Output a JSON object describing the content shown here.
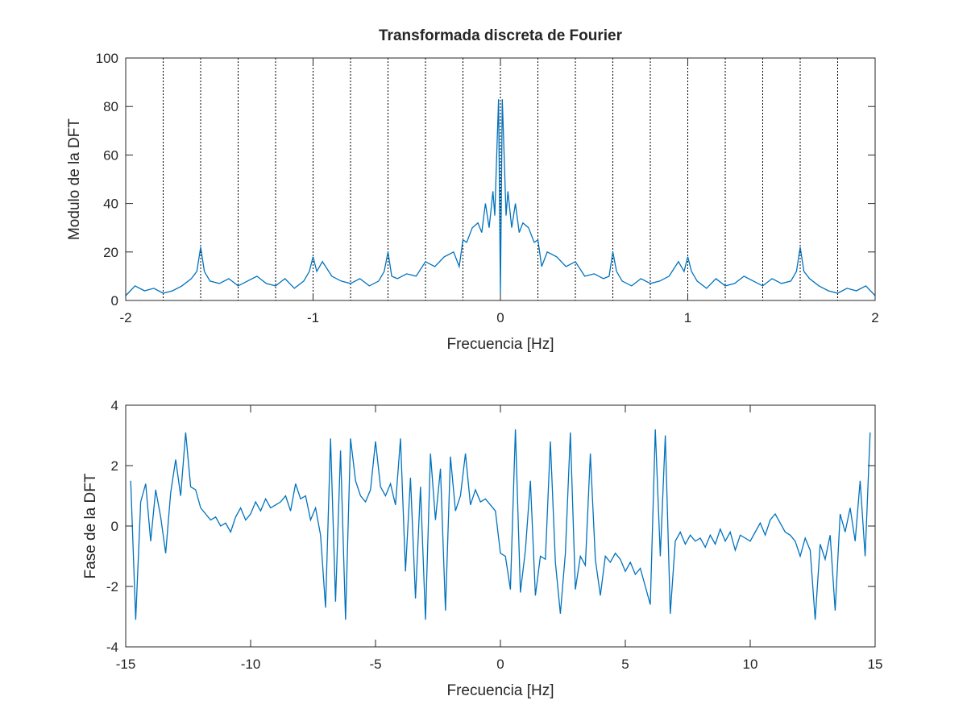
{
  "chart_data": [
    {
      "type": "line",
      "title": "Transformada discreta de Fourier",
      "xlabel": "Frecuencia [Hz]",
      "ylabel": "Modulo de la DFT",
      "xlim": [
        -2,
        2
      ],
      "ylim": [
        0,
        100
      ],
      "xticks": [
        "-2",
        "-1",
        "0",
        "1",
        "2"
      ],
      "yticks": [
        "0",
        "20",
        "40",
        "60",
        "80",
        "100"
      ],
      "vlines_dotted": [
        -1.8,
        -1.6,
        -1.4,
        -1.2,
        -1.0,
        -0.8,
        -0.6,
        -0.4,
        -0.2,
        0,
        0.2,
        0.4,
        0.6,
        0.8,
        1.0,
        1.2,
        1.4,
        1.6,
        1.8
      ],
      "line_color": "#0072bd",
      "series": [
        {
          "x": [
            -2,
            -1.95,
            -1.9,
            -1.85,
            -1.8,
            -1.75,
            -1.7,
            -1.65,
            -1.62,
            -1.6,
            -1.58,
            -1.55,
            -1.5,
            -1.45,
            -1.4,
            -1.35,
            -1.3,
            -1.25,
            -1.2,
            -1.15,
            -1.1,
            -1.05,
            -1.02,
            -1.0,
            -0.98,
            -0.95,
            -0.9,
            -0.85,
            -0.8,
            -0.75,
            -0.7,
            -0.65,
            -0.62,
            -0.6,
            -0.58,
            -0.55,
            -0.5,
            -0.45,
            -0.4,
            -0.35,
            -0.3,
            -0.25,
            -0.22,
            -0.2,
            -0.18,
            -0.15,
            -0.12,
            -0.1,
            -0.08,
            -0.06,
            -0.04,
            -0.03,
            -0.02,
            -0.01,
            0,
            0.01,
            0.02,
            0.03,
            0.04,
            0.06,
            0.08,
            0.1,
            0.12,
            0.15,
            0.18,
            0.2,
            0.22,
            0.25,
            0.3,
            0.35,
            0.4,
            0.45,
            0.5,
            0.55,
            0.58,
            0.6,
            0.62,
            0.65,
            0.7,
            0.75,
            0.8,
            0.85,
            0.9,
            0.95,
            0.98,
            1.0,
            1.02,
            1.05,
            1.1,
            1.15,
            1.2,
            1.25,
            1.3,
            1.35,
            1.4,
            1.45,
            1.5,
            1.55,
            1.58,
            1.6,
            1.62,
            1.65,
            1.7,
            1.75,
            1.8,
            1.85,
            1.9,
            1.95,
            2.0
          ],
          "y": [
            2,
            6,
            4,
            5,
            3,
            4,
            6,
            9,
            12,
            22,
            12,
            8,
            7,
            9,
            6,
            8,
            10,
            7,
            6,
            9,
            5,
            8,
            12,
            18,
            12,
            16,
            10,
            8,
            7,
            9,
            6,
            8,
            12,
            20,
            10,
            9,
            11,
            10,
            16,
            14,
            18,
            20,
            14,
            25,
            24,
            30,
            32,
            28,
            40,
            30,
            45,
            35,
            60,
            83,
            3,
            83,
            60,
            35,
            45,
            30,
            40,
            28,
            32,
            30,
            24,
            25,
            14,
            20,
            18,
            14,
            16,
            10,
            11,
            9,
            10,
            20,
            12,
            8,
            6,
            9,
            7,
            8,
            10,
            16,
            12,
            18,
            12,
            8,
            5,
            9,
            6,
            7,
            10,
            8,
            6,
            9,
            7,
            8,
            12,
            22,
            12,
            9,
            6,
            4,
            3,
            5,
            4,
            6,
            2
          ]
        }
      ]
    },
    {
      "type": "line",
      "title": "",
      "xlabel": "Frecuencia [Hz]",
      "ylabel": "Fase de la DFT",
      "xlim": [
        -15,
        15
      ],
      "ylim": [
        -4,
        4
      ],
      "xticks": [
        "-15",
        "-10",
        "-5",
        "0",
        "5",
        "10",
        "15"
      ],
      "yticks": [
        "-4",
        "-2",
        "0",
        "2",
        "4"
      ],
      "line_color": "#0072bd",
      "series": [
        {
          "x": [
            -14.8,
            -14.6,
            -14.4,
            -14.2,
            -14.0,
            -13.8,
            -13.6,
            -13.4,
            -13.2,
            -13.0,
            -12.8,
            -12.6,
            -12.4,
            -12.2,
            -12.0,
            -11.8,
            -11.6,
            -11.4,
            -11.2,
            -11.0,
            -10.8,
            -10.6,
            -10.4,
            -10.2,
            -10.0,
            -9.8,
            -9.6,
            -9.4,
            -9.2,
            -9.0,
            -8.8,
            -8.6,
            -8.4,
            -8.2,
            -8.0,
            -7.8,
            -7.6,
            -7.4,
            -7.2,
            -7.0,
            -6.8,
            -6.6,
            -6.4,
            -6.2,
            -6.0,
            -5.8,
            -5.6,
            -5.4,
            -5.2,
            -5.0,
            -4.8,
            -4.6,
            -4.4,
            -4.2,
            -4.0,
            -3.8,
            -3.6,
            -3.4,
            -3.2,
            -3.0,
            -2.8,
            -2.6,
            -2.4,
            -2.2,
            -2.0,
            -1.8,
            -1.6,
            -1.4,
            -1.2,
            -1.0,
            -0.8,
            -0.6,
            -0.4,
            -0.2,
            0.0,
            0.2,
            0.4,
            0.6,
            0.8,
            1.0,
            1.2,
            1.4,
            1.6,
            1.8,
            2.0,
            2.2,
            2.4,
            2.6,
            2.8,
            3.0,
            3.2,
            3.4,
            3.6,
            3.8,
            4.0,
            4.2,
            4.4,
            4.6,
            4.8,
            5.0,
            5.2,
            5.4,
            5.6,
            5.8,
            6.0,
            6.2,
            6.4,
            6.6,
            6.8,
            7.0,
            7.2,
            7.4,
            7.6,
            7.8,
            8.0,
            8.2,
            8.4,
            8.6,
            8.8,
            9.0,
            9.2,
            9.4,
            9.6,
            9.8,
            10.0,
            10.2,
            10.4,
            10.6,
            10.8,
            11.0,
            11.2,
            11.4,
            11.6,
            11.8,
            12.0,
            12.2,
            12.4,
            12.6,
            12.8,
            13.0,
            13.2,
            13.4,
            13.6,
            13.8,
            14.0,
            14.2,
            14.4,
            14.6,
            14.8
          ],
          "y": [
            1.5,
            -3.1,
            0.8,
            1.4,
            -0.5,
            1.2,
            0.3,
            -0.9,
            1.1,
            2.2,
            1.0,
            3.1,
            1.3,
            1.2,
            0.6,
            0.4,
            0.2,
            0.3,
            0.0,
            0.1,
            -0.2,
            0.3,
            0.6,
            0.2,
            0.4,
            0.8,
            0.5,
            0.9,
            0.6,
            0.7,
            0.8,
            1.0,
            0.5,
            1.4,
            0.9,
            1.0,
            0.2,
            0.6,
            -0.3,
            -2.7,
            2.9,
            -2.5,
            2.5,
            -3.1,
            2.9,
            1.5,
            1.0,
            0.8,
            1.2,
            2.8,
            1.3,
            1.0,
            1.4,
            0.7,
            2.9,
            -1.5,
            1.6,
            -2.4,
            1.3,
            -3.1,
            2.4,
            0.2,
            1.9,
            -2.8,
            2.3,
            0.5,
            1.0,
            2.4,
            0.7,
            1.2,
            0.8,
            0.9,
            0.7,
            0.5,
            -0.9,
            -1.0,
            -2.1,
            3.2,
            -2.2,
            -0.8,
            1.5,
            -2.3,
            -1.0,
            -1.1,
            2.8,
            -1.2,
            -2.9,
            -0.9,
            3.1,
            -2.1,
            -1.0,
            -1.3,
            2.4,
            -1.1,
            -2.3,
            -1.0,
            -1.2,
            -0.9,
            -1.1,
            -1.5,
            -1.2,
            -1.6,
            -1.4,
            -2.0,
            -2.6,
            3.2,
            -1.0,
            3.0,
            -2.9,
            -0.5,
            -0.2,
            -0.6,
            -0.3,
            -0.5,
            -0.4,
            -0.7,
            -0.3,
            -0.6,
            -0.1,
            -0.5,
            -0.2,
            -0.8,
            -0.3,
            -0.4,
            -0.5,
            -0.2,
            0.1,
            -0.3,
            0.2,
            0.4,
            0.1,
            -0.2,
            -0.3,
            -0.5,
            -1.0,
            -0.4,
            -0.8,
            -3.1,
            -0.6,
            -1.1,
            -0.3,
            -2.8,
            0.4,
            -0.2,
            0.6,
            -0.5,
            1.5,
            -1.0,
            3.1
          ]
        }
      ]
    }
  ]
}
